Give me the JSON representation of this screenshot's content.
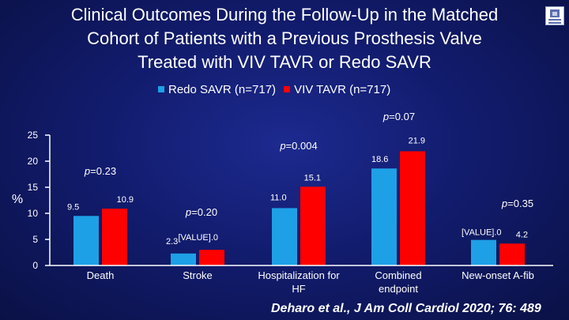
{
  "title_lines": [
    "Clinical Outcomes During the Follow-Up in the Matched",
    "Cohort of Patients with a Previous Prosthesis Valve",
    "Treated with VIV TAVR or Redo SAVR"
  ],
  "citation": "Deharo et al., J Am Coll Cardiol 2020; 76: 489",
  "colors": {
    "redo": "#1ea0e6",
    "viv": "#ff0000",
    "axis": "#ffffff"
  },
  "chart_data": {
    "type": "bar",
    "ylabel": "%",
    "ylim": [
      0,
      25
    ],
    "yticks": [
      "0",
      "5",
      "10",
      "15",
      "20",
      "25"
    ],
    "categories": [
      "Death",
      "Stroke",
      "Hospitalization for HF",
      "Combined endpoint",
      "New-onset A-fib"
    ],
    "category_label_lines": [
      [
        "Death"
      ],
      [
        "Stroke"
      ],
      [
        "Hospitalization for",
        "HF"
      ],
      [
        "Combined",
        "endpoint"
      ],
      [
        "New-onset A-fib"
      ]
    ],
    "series": [
      {
        "name": "Redo SAVR (n=717)",
        "values": [
          9.5,
          2.3,
          11.0,
          18.6,
          4.9
        ],
        "labels": [
          "9.5",
          "2.3",
          "11.0",
          "18.6",
          "[VALUE].0"
        ]
      },
      {
        "name": "VIV TAVR (n=717)",
        "values": [
          10.9,
          3.0,
          15.1,
          21.9,
          4.2
        ],
        "labels": [
          "10.9",
          "[VALUE].0",
          "15.1",
          "21.9",
          "4.2"
        ]
      }
    ],
    "p_values": [
      "p=0.23",
      "p=0.20",
      "p=0.004",
      "p=0.07",
      "p=0.35"
    ]
  }
}
